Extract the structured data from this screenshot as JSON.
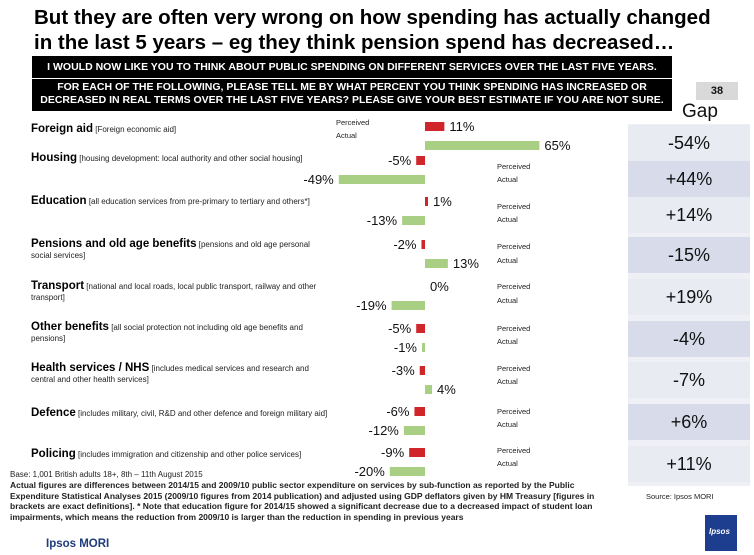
{
  "headline": "But they are often very wrong on how spending has actually changed in the last 5 years – eg they think pension spend has decreased…",
  "question_line1": "I WOULD NOW LIKE YOU TO THINK ABOUT PUBLIC SPENDING ON DIFFERENT SERVICES OVER THE LAST FIVE YEARS.",
  "question_line2": "FOR EACH OF THE FOLLOWING, PLEASE TELL ME BY WHAT PERCENT YOU THINK SPENDING HAS INCREASED OR DECREASED IN REAL TERMS OVER THE LAST FIVE YEARS?  PLEASE GIVE YOUR BEST ESTIMATE IF YOU ARE NOT SURE.",
  "page_number": "38",
  "gap_header": "Gap",
  "base_note": "Base: 1,001 British adults 18+, 8th – 11th August 2015",
  "footnote": "Actual figures are differences between 2014/15 and 2009/10  public sector expenditure on services by sub-function as reported by the Public Expenditure Statistical Analyses 2015 (2009/10 figures from 2014 publication) and adjusted using GDP deflators given by HM Treasury [figures in brackets are exact definitions].  * Note that education figure for 2014/15 showed a significant decrease due to a decreased impact of student loan impairments, which means the reduction from 2009/10 is larger than the reduction in spending in previous years",
  "source": "Source: Ipsos MORI",
  "brand": "Ipsos MORI",
  "logo_text": "Ipsos",
  "colors": {
    "perceived": "#d0262b",
    "actual": "#a9cf84",
    "gap_cell": "#e8ebf2",
    "gap_cell_alt": "#d8dcea"
  },
  "services": [
    {
      "name": "Foreign aid",
      "desc": "[Foreign economic aid]",
      "perceived_label": "11%",
      "actual_label": "65%",
      "series_label_1": "Perceived",
      "series_label_2": "Actual",
      "gap": "-54%"
    },
    {
      "name": "Housing",
      "desc": "[housing development: local authority and other social housing]",
      "perceived_label": "-5%",
      "actual_label": "-49%",
      "series_label_1": "Perceived",
      "series_label_2": "Actual",
      "gap": "+44%"
    },
    {
      "name": "Education",
      "desc": "[all education services from pre-primary to tertiary and others*]",
      "perceived_label": "1%",
      "actual_label": "-13%",
      "series_label_1": "Perceived",
      "series_label_2": "Actual",
      "gap": "+14%"
    },
    {
      "name": "Pensions and old age benefits",
      "desc": "[pensions and old age personal social services]",
      "perceived_label": "-2%",
      "actual_label": "13%",
      "series_label_1": "Perceived",
      "series_label_2": "Actual",
      "gap": "-15%"
    },
    {
      "name": "Transport",
      "desc": "[national and local roads, local public transport, railway and other transport]",
      "perceived_label": "0%",
      "actual_label": "-19%",
      "series_label_1": "Perceived",
      "series_label_2": "Actual",
      "gap": "+19%"
    },
    {
      "name": "Other benefits",
      "desc": "[all social protection not including old age benefits and pensions]",
      "perceived_label": "-5%",
      "actual_label": "-1%",
      "series_label_1": "Perceived",
      "series_label_2": "Actual",
      "gap": "-4%"
    },
    {
      "name": "Health services / NHS",
      "desc": "[includes medical services and research and central and other health services]",
      "perceived_label": "-3%",
      "actual_label": "4%",
      "series_label_1": "Perceived",
      "series_label_2": "Actual",
      "gap": "-7%"
    },
    {
      "name": "Defence",
      "desc": "[includes military, civil, R&D and other defence and foreign military aid]",
      "perceived_label": "-6%",
      "actual_label": "-12%",
      "series_label_1": "Perceived",
      "series_label_2": "Actual",
      "gap": "+6%"
    },
    {
      "name": "Policing",
      "desc": "[includes immigration and citizenship and other police services]",
      "perceived_label": "-9%",
      "actual_label": "-20%",
      "series_label_1": "Perceived",
      "series_label_2": "Actual",
      "gap": "+11%"
    }
  ],
  "chart_data": {
    "type": "bar",
    "orientation": "horizontal",
    "categories": [
      "Foreign aid",
      "Housing",
      "Education",
      "Pensions and old age benefits",
      "Transport",
      "Other benefits",
      "Health services / NHS",
      "Defence",
      "Policing"
    ],
    "series": [
      {
        "name": "Perceived",
        "values": [
          11,
          -5,
          1,
          -2,
          0,
          -5,
          -3,
          -6,
          -9
        ]
      },
      {
        "name": "Actual",
        "values": [
          65,
          -49,
          -13,
          13,
          -19,
          -1,
          4,
          -12,
          -20
        ]
      }
    ],
    "gap": [
      -54,
      44,
      14,
      -15,
      19,
      -4,
      -7,
      6,
      11
    ],
    "unit": "%",
    "title": "But they are often very wrong on how spending has actually changed in the last 5 years – eg they think pension spend has decreased…"
  }
}
